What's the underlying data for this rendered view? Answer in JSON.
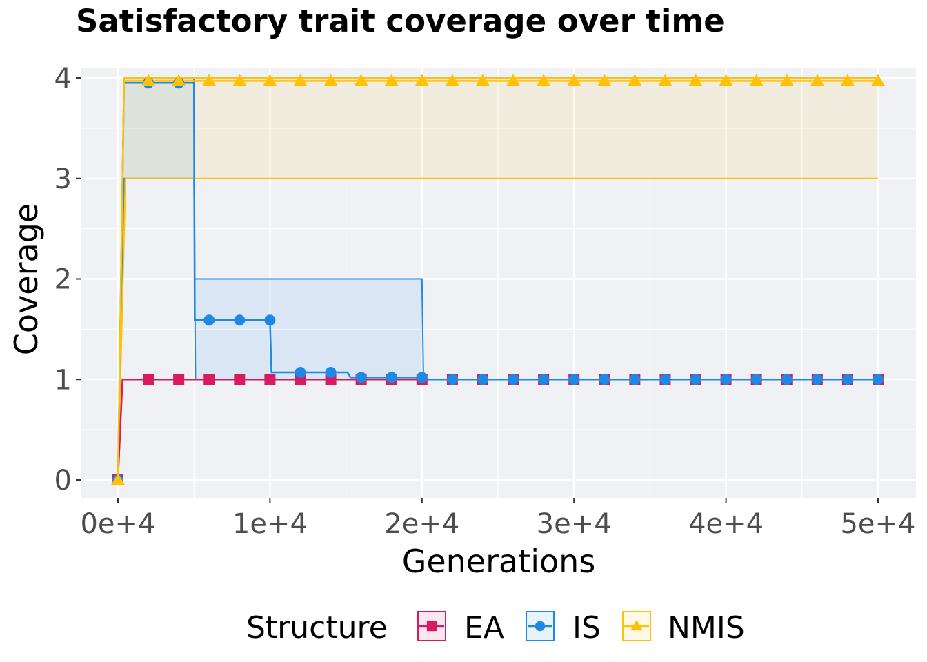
{
  "chart_data": {
    "type": "line",
    "title": "Satisfactory trait coverage over time",
    "xlabel": "Generations",
    "ylabel": "Coverage",
    "xlim": [
      -2500,
      52500
    ],
    "ylim": [
      -0.18,
      4.15
    ],
    "xticks": [
      0,
      10000,
      20000,
      30000,
      40000,
      50000
    ],
    "xtick_labels": [
      "0e+4",
      "1e+4",
      "2e+4",
      "3e+4",
      "4e+4",
      "5e+4"
    ],
    "yticks": [
      0,
      1,
      2,
      3,
      4
    ],
    "ytick_labels": [
      "0",
      "1",
      "2",
      "3",
      "4"
    ],
    "grid": true,
    "legend": {
      "title": "Structure",
      "placement": "bottom"
    },
    "marker_x": [
      0,
      2000,
      4000,
      6000,
      8000,
      10000,
      12000,
      14000,
      16000,
      18000,
      20000,
      22000,
      24000,
      26000,
      28000,
      30000,
      32000,
      34000,
      36000,
      38000,
      40000,
      42000,
      44000,
      46000,
      48000,
      50000
    ],
    "series": [
      {
        "name": "EA",
        "color": "#D81B60",
        "marker": "square",
        "marker_values": [
          0,
          1,
          1,
          1,
          1,
          1,
          1,
          1,
          1,
          1,
          1,
          1,
          1,
          1,
          1,
          1,
          1,
          1,
          1,
          1,
          1,
          1,
          1,
          1,
          1,
          1
        ],
        "line": [
          [
            0,
            0
          ],
          [
            300,
            1
          ],
          [
            50000,
            1
          ]
        ],
        "band_upper": [
          [
            0,
            0
          ],
          [
            300,
            1
          ],
          [
            50000,
            1
          ]
        ],
        "band_lower": [
          [
            0,
            0
          ],
          [
            300,
            1
          ],
          [
            50000,
            1
          ]
        ]
      },
      {
        "name": "IS",
        "color": "#1E88E5",
        "marker": "circle",
        "marker_values": [
          0,
          3.95,
          3.95,
          1.59,
          1.59,
          1.59,
          1.07,
          1.07,
          1.02,
          1.02,
          1.02,
          1,
          1,
          1,
          1,
          1,
          1,
          1,
          1,
          1,
          1,
          1,
          1,
          1,
          1,
          1
        ],
        "line": [
          [
            0,
            0
          ],
          [
            400,
            3.95
          ],
          [
            5000,
            3.95
          ],
          [
            5050,
            1.59
          ],
          [
            10000,
            1.59
          ],
          [
            10100,
            1.07
          ],
          [
            15100,
            1.07
          ],
          [
            15300,
            1.02
          ],
          [
            20000,
            1.02
          ],
          [
            20100,
            1
          ],
          [
            50000,
            1
          ]
        ],
        "band_upper": [
          [
            0,
            0
          ],
          [
            400,
            4
          ],
          [
            5000,
            4
          ],
          [
            5050,
            2
          ],
          [
            20000,
            2
          ],
          [
            20100,
            1
          ],
          [
            50000,
            1
          ]
        ],
        "band_lower": [
          [
            0,
            0
          ],
          [
            400,
            3
          ],
          [
            5000,
            3
          ],
          [
            5100,
            1
          ],
          [
            50000,
            1
          ]
        ]
      },
      {
        "name": "NMIS",
        "color": "#FFC107",
        "marker": "triangle",
        "marker_values": [
          0,
          3.97,
          3.97,
          3.97,
          3.97,
          3.97,
          3.97,
          3.97,
          3.97,
          3.97,
          3.97,
          3.97,
          3.97,
          3.97,
          3.97,
          3.97,
          3.97,
          3.97,
          3.97,
          3.97,
          3.97,
          3.97,
          3.97,
          3.97,
          3.97,
          3.97
        ],
        "line": [
          [
            0,
            0
          ],
          [
            400,
            3.97
          ],
          [
            50000,
            3.97
          ]
        ],
        "band_upper": [
          [
            0,
            0
          ],
          [
            400,
            4
          ],
          [
            50000,
            4
          ]
        ],
        "band_lower": [
          [
            0,
            0
          ],
          [
            500,
            3
          ],
          [
            50000,
            3
          ]
        ]
      }
    ]
  }
}
